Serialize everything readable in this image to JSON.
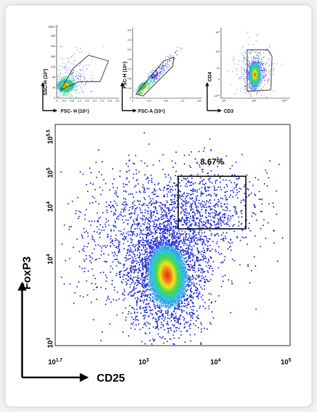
{
  "panels": [
    {
      "xlabel": "FSC- H (10⁶)",
      "ylabel": "SSC-H (10³)",
      "xticks": [
        "0",
        "0.4",
        "0.8",
        "1.2",
        "1.6",
        "2.0",
        "2.4",
        "2.8",
        "3.2"
      ],
      "yticks": [
        "0",
        "40",
        "80",
        "120",
        "160",
        "200",
        "240",
        "268.2"
      ]
    },
    {
      "xlabel": "FSC-A (10⁶)",
      "ylabel": "FSC-H (10⁶)",
      "xticks": [
        "0",
        "0.4",
        "0.8",
        "1.2",
        "1.6"
      ],
      "yticks": [
        "0",
        "0.4",
        "0.8",
        "1.2",
        "1.6",
        "2.0",
        "2.4",
        "3.0"
      ]
    },
    {
      "xlabel": "CD3",
      "ylabel": "CD4",
      "xticks": [
        "10¹",
        "10⁵",
        "10¹⁰"
      ],
      "yticks": [
        "-10¹⁰",
        "0",
        "10",
        "10³",
        "10⁷"
      ]
    }
  ],
  "main": {
    "xlabel": "CD25",
    "ylabel": "FoxP3",
    "x_ticks": [
      {
        "base": "10",
        "exp": "1.7"
      },
      {
        "base": "10",
        "exp": "3"
      },
      {
        "base": "10",
        "exp": "4"
      },
      {
        "base": "10",
        "exp": "5"
      }
    ],
    "y_ticks": [
      {
        "base": "10",
        "exp": "5.5"
      },
      {
        "base": "10",
        "exp": "5"
      },
      {
        "base": "10",
        "exp": "4"
      },
      {
        "base": "10",
        "exp": "4"
      },
      {
        "base": "10",
        "exp": "3"
      }
    ],
    "gate_percent": "8.67%"
  },
  "colors": {
    "low": "#1f2bd6",
    "mid": "#27c3e6",
    "midhigh": "#3ed84a",
    "high": "#f2e21a",
    "peak": "#e82a12"
  },
  "chart_data": [
    {
      "type": "scatter",
      "title": "",
      "xlabel": "FSC- H (10⁶)",
      "ylabel": "SSC-H (10³)",
      "xlim": [
        0,
        3.2
      ],
      "ylim": [
        0,
        268.2
      ],
      "density_center": [
        0.45,
        40
      ],
      "gate": "polygon",
      "gate_vertices": [
        [
          0.2,
          30
        ],
        [
          1.2,
          60
        ],
        [
          2.4,
          60
        ],
        [
          2.5,
          190
        ],
        [
          1.5,
          210
        ],
        [
          0.5,
          120
        ]
      ]
    },
    {
      "type": "scatter",
      "title": "",
      "xlabel": "FSC-A (10⁶)",
      "ylabel": "FSC-H (10⁶)",
      "xlim": [
        0,
        1.6
      ],
      "ylim": [
        0,
        3.0
      ],
      "density_center": [
        0.3,
        0.6
      ],
      "gate": "polygon",
      "gate_vertices": [
        [
          0.1,
          0.15
        ],
        [
          0.85,
          2.1
        ],
        [
          1.05,
          2.2
        ],
        [
          1.0,
          1.7
        ],
        [
          0.2,
          0.1
        ]
      ]
    },
    {
      "type": "scatter",
      "title": "",
      "xlabel": "CD3",
      "ylabel": "CD4",
      "xlim": [
        "10¹",
        "10¹⁰"
      ],
      "ylim": [
        "-10¹⁰",
        "10⁷"
      ],
      "density_center": [
        "10⁵",
        "0"
      ],
      "gate": "rectangle"
    },
    {
      "type": "scatter",
      "title": "",
      "xlabel": "CD25",
      "ylabel": "FoxP3",
      "xscale": "log",
      "yscale": "log",
      "xlim": [
        "10^1.7",
        "10^5"
      ],
      "ylim": [
        "10^3",
        "10^5.5"
      ],
      "density_center": [
        "~10^3.4",
        "~10^3.9"
      ],
      "gate": {
        "x": [
          "~10^3.5",
          "~10^4.45"
        ],
        "y": [
          "~10^4.3",
          "~10^5.05"
        ],
        "percent": "8.67%"
      },
      "colorscale": [
        "blue",
        "cyan",
        "green",
        "yellow",
        "red"
      ]
    }
  ]
}
